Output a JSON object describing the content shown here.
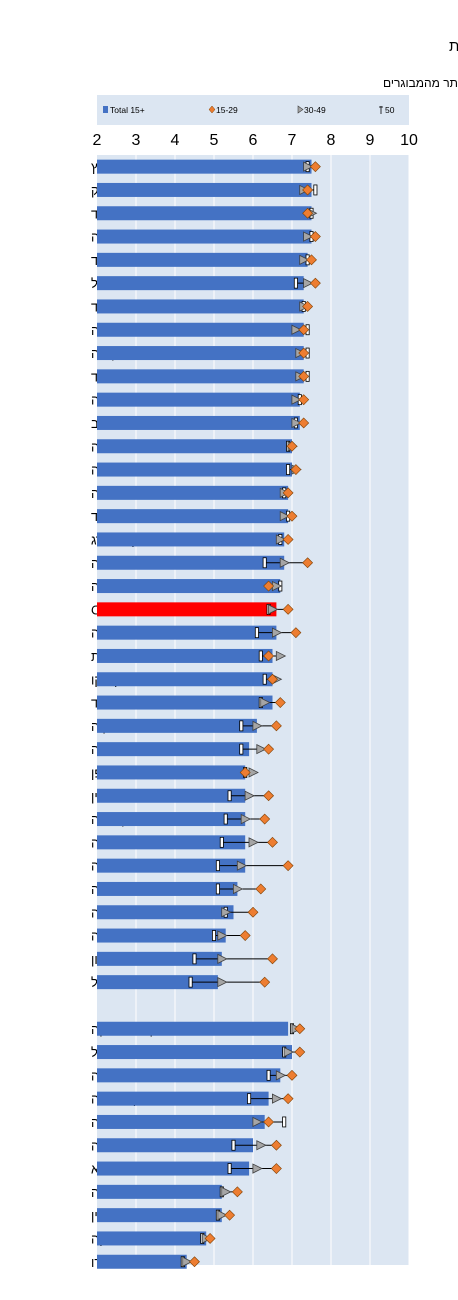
{
  "chart_data": {
    "type": "bar",
    "title": "מדד שביעות הרצון מהחיים במדינות OECD ובמדינות מתפתחות",
    "subtitle": "ככלל, צעירים מרוצים יותר מהמבוגרים",
    "xlim": [
      2,
      10
    ],
    "xticks": [
      2,
      3,
      4,
      5,
      6,
      7,
      8,
      9,
      10
    ],
    "orientation": "horizontal",
    "grid": true,
    "legend_position": "top",
    "colors": {
      "bar": "#4472C4",
      "highlight": "#FF0000",
      "age15_29": "#ED7D31",
      "age30_49": "#A5A5A5",
      "panel": "#DCE6F2"
    },
    "legend": {
      "total": "Total 15+",
      "age15_29": "15-29",
      "age30_49": "30-49",
      "age50": "50"
    },
    "highlight_category": "OECD",
    "groups": [
      {
        "categories": [
          "שוויץ",
          "דנמרק",
          "איסלנד",
          "נורבגיה",
          "פינלנד",
          "ישראל",
          "ניו זילנד",
          "אוסטרליה",
          "קנדה",
          "הולנד",
          "שבדיה",
          "ארה\"ב",
          "אוסטריה",
          "גרמניה",
          "בלגיה",
          "אירלנד",
          "לוקסמבורג",
          "צ'ילה",
          "בריטניה",
          "OECD",
          "צ'כיה",
          "צרפת",
          "מקסיקו",
          "ספרד",
          "סלובקיה",
          "איטליה",
          "יפן",
          "פולין",
          "קוריאה",
          "לטביה",
          "סלובניה",
          "אסטוניה",
          "תורכיה",
          "הונגריה",
          "יוון",
          "פורטוגל"
        ],
        "series": [
          {
            "name": "Total 15+",
            "values": [
              7.5,
              7.5,
              7.5,
              7.5,
              7.4,
              7.3,
              7.3,
              7.3,
              7.3,
              7.3,
              7.2,
              7.2,
              7.0,
              7.0,
              6.9,
              6.9,
              6.8,
              6.8,
              6.7,
              6.6,
              6.6,
              6.5,
              6.5,
              6.5,
              6.1,
              5.9,
              5.8,
              5.8,
              5.8,
              5.8,
              5.8,
              5.6,
              5.5,
              5.3,
              5.2,
              5.1
            ]
          },
          {
            "name": "15-29",
            "values": [
              7.6,
              7.4,
              7.4,
              7.6,
              7.5,
              7.6,
              7.4,
              7.3,
              7.3,
              7.3,
              7.3,
              7.3,
              7.0,
              7.1,
              6.9,
              7.0,
              6.9,
              7.4,
              6.4,
              6.9,
              7.1,
              6.4,
              6.5,
              6.7,
              6.6,
              6.4,
              5.8,
              6.4,
              6.3,
              6.5,
              6.9,
              6.2,
              6.0,
              5.8,
              6.5,
              6.3
            ]
          },
          {
            "name": "30-49",
            "values": [
              7.4,
              7.3,
              7.5,
              7.4,
              7.3,
              7.4,
              7.3,
              7.1,
              7.2,
              7.2,
              7.1,
              7.1,
              7.0,
              7.1,
              6.8,
              6.8,
              6.7,
              6.8,
              6.6,
              6.5,
              6.6,
              6.7,
              6.6,
              6.3,
              6.1,
              6.2,
              6.0,
              5.9,
              5.8,
              6.0,
              5.7,
              5.6,
              5.3,
              5.2,
              5.2,
              5.2
            ]
          },
          {
            "name": "50",
            "values": [
              7.4,
              7.6,
              7.5,
              7.5,
              7.4,
              7.1,
              7.3,
              7.4,
              7.4,
              7.4,
              7.2,
              7.1,
              6.9,
              6.9,
              6.8,
              6.9,
              6.7,
              6.3,
              6.7,
              6.4,
              6.1,
              6.2,
              6.3,
              6.2,
              5.7,
              5.7,
              5.8,
              5.4,
              5.3,
              5.2,
              5.1,
              5.1,
              5.3,
              5.0,
              4.5,
              4.4
            ]
          }
        ]
      },
      {
        "categories": [
          "קוסטה ריקה",
          "ברזיל",
          "ארגנטינה",
          "קולומביה",
          "סעודיה",
          "רוסיה",
          "ליטא",
          "אינדונזיה",
          "סין",
          "דרום אפריקה",
          "הודו"
        ],
        "series": [
          {
            "name": "Total 15+",
            "values": [
              6.9,
              7.0,
              6.7,
              6.4,
              6.3,
              6.0,
              5.9,
              5.2,
              5.2,
              4.8,
              4.3
            ]
          },
          {
            "name": "15-29",
            "values": [
              7.2,
              7.2,
              7.0,
              6.9,
              6.4,
              6.6,
              6.6,
              5.6,
              5.4,
              4.9,
              4.5
            ]
          },
          {
            "name": "30-49",
            "values": [
              7.1,
              6.9,
              6.7,
              6.6,
              6.1,
              6.2,
              6.1,
              5.3,
              5.2,
              4.8,
              4.3
            ]
          },
          {
            "name": "50",
            "values": [
              7.0,
              6.8,
              6.4,
              5.9,
              6.8,
              5.5,
              5.4,
              5.2,
              5.1,
              4.7,
              4.2
            ]
          }
        ]
      }
    ]
  }
}
